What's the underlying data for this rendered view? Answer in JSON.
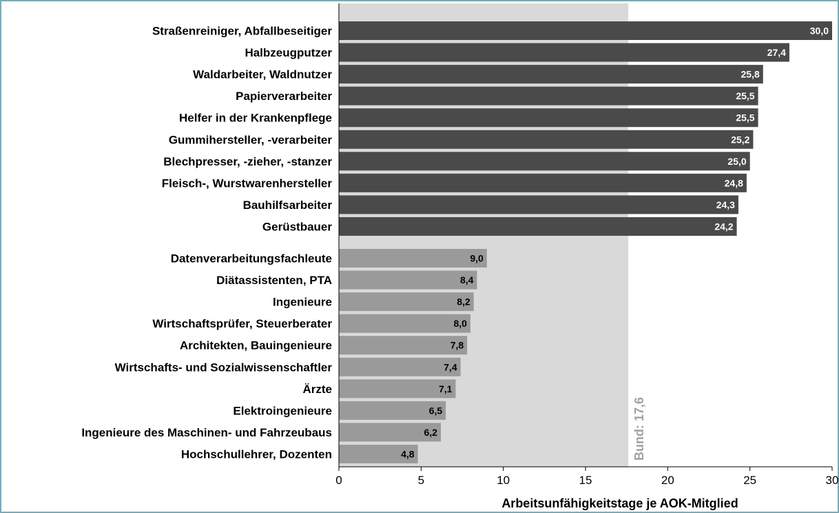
{
  "chart_data": {
    "type": "bar",
    "orientation": "horizontal",
    "xlabel": "Arbeitsunfähigkeitstage je AOK-Mitglied",
    "xlim": [
      0,
      30
    ],
    "xticks": [
      "0",
      "5",
      "10",
      "15",
      "20",
      "25",
      "30"
    ],
    "reference": {
      "label": "Bund: 17,6",
      "value": 17.6
    },
    "colors": {
      "top": "#4a4a4a",
      "bottom": "#9a9a9a",
      "band": "#d9d9d9",
      "top_label": "#ffffff",
      "bottom_label": "#000000",
      "ref_label": "#a0a0a0"
    },
    "groups": [
      {
        "categories": [
          "Straßenreiniger, Abfallbeseitiger",
          "Halbzeugputzer",
          "Waldarbeiter, Waldnutzer",
          "Papierverarbeiter",
          "Helfer in der Krankenpflege",
          "Gummihersteller, -verarbeiter",
          "Blechpresser, -zieher, -stanzer",
          "Fleisch-, Wurstwarenhersteller",
          "Bauhilfsarbeiter",
          "Gerüstbauer"
        ],
        "values": [
          30.0,
          27.4,
          25.8,
          25.5,
          25.5,
          25.2,
          25.0,
          24.8,
          24.3,
          24.2
        ],
        "labels": [
          "30,0",
          "27,4",
          "25,8",
          "25,5",
          "25,5",
          "25,2",
          "25,0",
          "24,8",
          "24,3",
          "24,2"
        ]
      },
      {
        "categories": [
          "Datenverarbeitungsfachleute",
          "Diätassistenten, PTA",
          "Ingenieure",
          "Wirtschaftsprüfer, Steuerberater",
          "Architekten, Bauingenieure",
          "Wirtschafts- und Sozialwissenschaftler",
          "Ärzte",
          "Elektroingenieure",
          "Ingenieure des Maschinen- und Fahrzeubaus",
          "Hochschullehrer, Dozenten"
        ],
        "values": [
          9.0,
          8.4,
          8.2,
          8.0,
          7.8,
          7.4,
          7.1,
          6.5,
          6.2,
          4.8
        ],
        "labels": [
          "9,0",
          "8,4",
          "8,2",
          "8,0",
          "7,8",
          "7,4",
          "7,1",
          "6,5",
          "6,2",
          "4,8"
        ]
      }
    ]
  }
}
